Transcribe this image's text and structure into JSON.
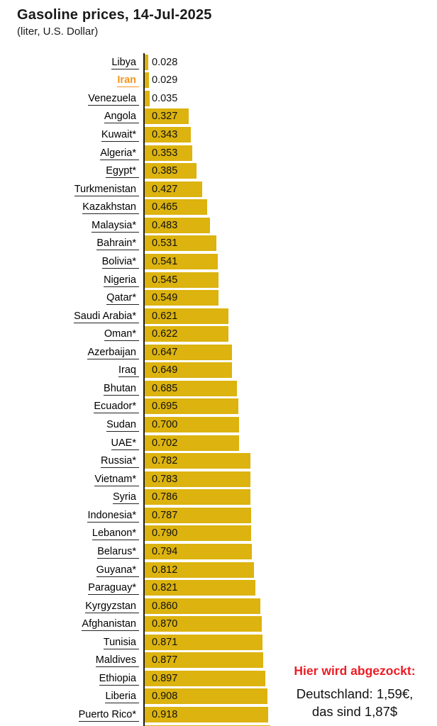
{
  "header": {
    "title": "Gasoline prices, 14-Jul-2025",
    "subtitle": "(liter, U.S. Dollar)"
  },
  "chart_data": {
    "type": "bar",
    "orientation": "horizontal",
    "title": "Gasoline prices, 14-Jul-2025",
    "subtitle": "(liter, U.S. Dollar)",
    "unit": "U.S. Dollar per liter",
    "categories": [
      "Libya",
      "Iran",
      "Venezuela",
      "Angola",
      "Kuwait*",
      "Algeria*",
      "Egypt*",
      "Turkmenistan",
      "Kazakhstan",
      "Malaysia*",
      "Bahrain*",
      "Bolivia*",
      "Nigeria",
      "Qatar*",
      "Saudi Arabia*",
      "Oman*",
      "Azerbaijan",
      "Iraq",
      "Bhutan",
      "Ecuador*",
      "Sudan",
      "UAE*",
      "Russia*",
      "Vietnam*",
      "Syria",
      "Indonesia*",
      "Lebanon*",
      "Belarus*",
      "Guyana*",
      "Paraguay*",
      "Kyrgyzstan",
      "Afghanistan",
      "Tunisia",
      "Maldives",
      "Ethiopia",
      "Liberia",
      "Puerto Rico*"
    ],
    "values": [
      0.028,
      0.029,
      0.035,
      0.327,
      0.343,
      0.353,
      0.385,
      0.427,
      0.465,
      0.483,
      0.531,
      0.541,
      0.545,
      0.549,
      0.621,
      0.622,
      0.647,
      0.649,
      0.685,
      0.695,
      0.7,
      0.702,
      0.782,
      0.783,
      0.786,
      0.787,
      0.79,
      0.794,
      0.812,
      0.821,
      0.86,
      0.87,
      0.871,
      0.877,
      0.897,
      0.908,
      0.918
    ],
    "value_labels": [
      "0.028",
      "0.029",
      "0.035",
      "0.327",
      "0.343",
      "0.353",
      "0.385",
      "0.427",
      "0.465",
      "0.483",
      "0.531",
      "0.541",
      "0.545",
      "0.549",
      "0.621",
      "0.622",
      "0.647",
      "0.649",
      "0.685",
      "0.695",
      "0.700",
      "0.702",
      "0.782",
      "0.783",
      "0.786",
      "0.787",
      "0.790",
      "0.794",
      "0.812",
      "0.821",
      "0.860",
      "0.870",
      "0.871",
      "0.877",
      "0.897",
      "0.908",
      "0.918"
    ],
    "highlighted_category": "Iran",
    "xlim": [
      0,
      1.0
    ],
    "bar_color": "#dcb30f",
    "axis_color": "#1c1c1c",
    "highlight_label_color": "#f7941d",
    "partial_next_bar": {
      "visible": true,
      "approx_value": 0.93
    }
  },
  "annotation": {
    "headline": "Hier wird abgezockt:",
    "line1": "Deutschland: 1,59€,",
    "line2": "das sind 1,87$",
    "headline_color": "#ed1c24"
  }
}
